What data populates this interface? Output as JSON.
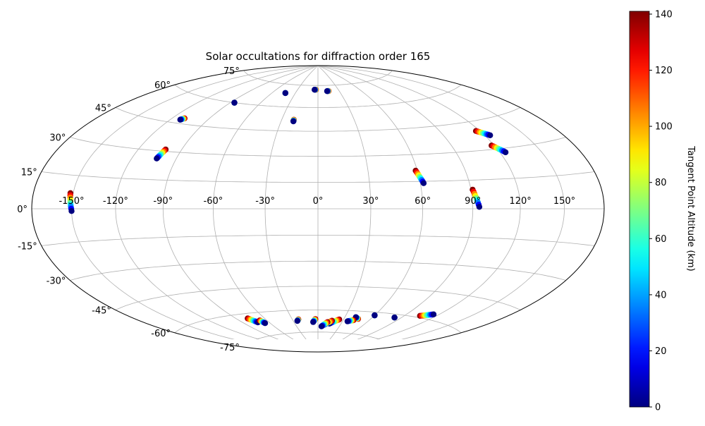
{
  "chart_data": {
    "type": "scatter",
    "projection": "hammer",
    "title": "Solar occultations for diffraction order 165",
    "xlabel": "",
    "ylabel": "",
    "lon_ticks": [
      -150,
      -120,
      -90,
      -60,
      -30,
      0,
      30,
      60,
      90,
      120,
      150
    ],
    "lat_ticks": [
      75,
      60,
      45,
      30,
      15,
      0,
      -15,
      -30,
      -45,
      -60,
      -75
    ],
    "grid": true,
    "colorbar": {
      "label": "Tangent Point Altitude (km)",
      "range": [
        0,
        141
      ],
      "ticks": [
        0,
        20,
        40,
        60,
        80,
        100,
        120,
        140
      ],
      "colormap": "jet"
    },
    "occultations": [
      {
        "lon_start": -152,
        "lat_start": 7,
        "lon_end": -150,
        "lat_end": -1
      },
      {
        "lon_start": -110,
        "lat_start": 48,
        "lon_end": -112,
        "lat_end": 47
      },
      {
        "lon_start": -101,
        "lat_start": 31,
        "lon_end": -103,
        "lat_end": 26
      },
      {
        "lon_start": -86,
        "lat_start": 60,
        "lon_end": -86,
        "lat_end": 60
      },
      {
        "lon_start": -43,
        "lat_start": 69,
        "lon_end": -43,
        "lat_end": 69
      },
      {
        "lon_start": -20,
        "lat_start": 52,
        "lon_end": -20,
        "lat_end": 51
      },
      {
        "lon_start": -3,
        "lat_start": 72,
        "lon_end": -5,
        "lat_end": 72
      },
      {
        "lon_start": 15,
        "lat_start": 71,
        "lon_end": 13,
        "lat_end": 71
      },
      {
        "lon_start": 59,
        "lat_start": 21,
        "lon_end": 62,
        "lat_end": 14
      },
      {
        "lon_start": 91,
        "lat_start": 10,
        "lon_end": 94,
        "lat_end": 1
      },
      {
        "lon_start": 117,
        "lat_start": 40,
        "lon_end": 124,
        "lat_end": 37
      },
      {
        "lon_start": 118,
        "lat_start": 32,
        "lon_end": 124,
        "lat_end": 28
      },
      {
        "lon_start": 105,
        "lat_start": -59,
        "lon_end": 115,
        "lat_end": -57
      },
      {
        "lon_start": 83,
        "lat_start": -62,
        "lon_end": 83,
        "lat_end": -62
      },
      {
        "lon_start": 60,
        "lat_start": -62,
        "lon_end": 60,
        "lat_end": -62
      },
      {
        "lon_start": 46,
        "lat_start": -65,
        "lon_end": 42,
        "lat_end": -64
      },
      {
        "lon_start": 42,
        "lat_start": -66,
        "lon_end": 36,
        "lat_end": -67
      },
      {
        "lon_start": 25,
        "lat_start": -66,
        "lon_end": 15,
        "lat_end": -69
      },
      {
        "lon_start": 17,
        "lat_start": -67,
        "lon_end": 8,
        "lat_end": -70
      },
      {
        "lon_start": 12,
        "lat_start": -68,
        "lon_end": 5,
        "lat_end": -71
      },
      {
        "lon_start": -3,
        "lat_start": -66,
        "lon_end": -6,
        "lat_end": -68
      },
      {
        "lon_start": -23,
        "lat_start": -66,
        "lon_end": -25,
        "lat_end": -67
      },
      {
        "lon_start": -78,
        "lat_start": -63,
        "lon_end": -73,
        "lat_end": -66
      },
      {
        "lon_start": -68,
        "lat_start": -65,
        "lon_end": -66,
        "lat_end": -67
      }
    ]
  }
}
